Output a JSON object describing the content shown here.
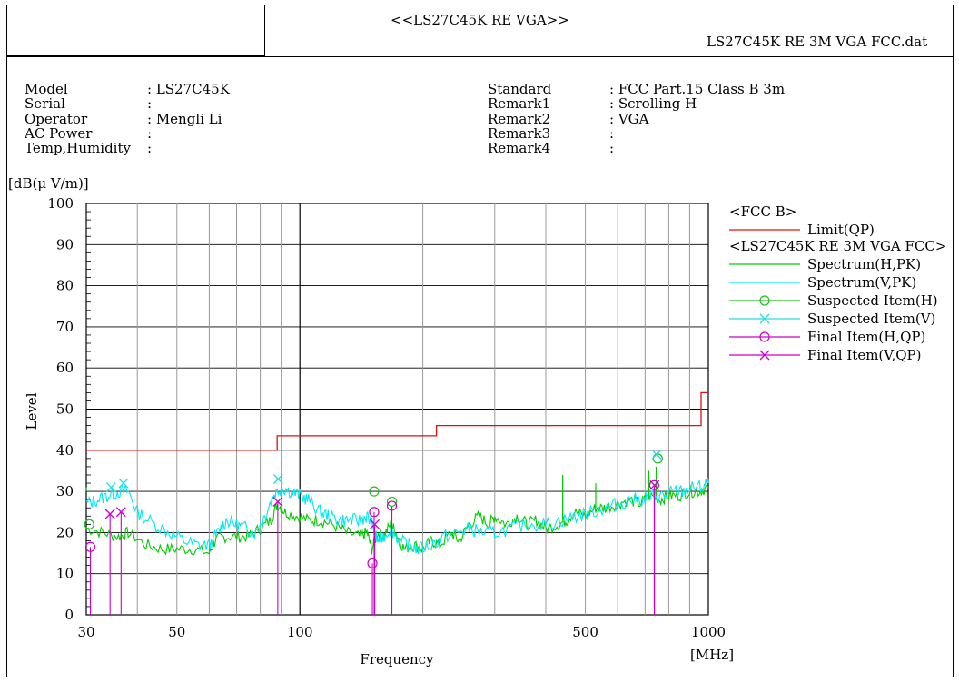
{
  "header": {
    "title": "<<LS27C45K RE VGA>>",
    "filename": "LS27C45K RE 3M VGA FCC.dat"
  },
  "meta_left": [
    {
      "label": "Model",
      "value": ": LS27C45K"
    },
    {
      "label": "Serial",
      "value": ":"
    },
    {
      "label": "Operator",
      "value": ": Mengli Li"
    },
    {
      "label": "AC Power",
      "value": ":"
    },
    {
      "label": "Temp,Humidity",
      "value": ":"
    }
  ],
  "meta_right": [
    {
      "label": "Standard",
      "value": ": FCC Part.15 Class B 3m"
    },
    {
      "label": "Remark1",
      "value": ": Scrolling H"
    },
    {
      "label": "Remark2",
      "value": ": VGA"
    },
    {
      "label": "Remark3",
      "value": ":"
    },
    {
      "label": "Remark4",
      "value": ":"
    }
  ],
  "chart_data": {
    "type": "line",
    "xlabel": "Frequency",
    "xunit": "[MHz]",
    "ylabel": "Level",
    "yunit": "[dB(μ V/m)]",
    "x_scale": "log",
    "xlim": [
      30,
      1000
    ],
    "ylim": [
      0,
      100
    ],
    "x_ticks": [
      30,
      50,
      100,
      500,
      1000
    ],
    "y_ticks": [
      0,
      10,
      20,
      30,
      40,
      50,
      60,
      70,
      80,
      90,
      100
    ],
    "grid": true,
    "legend_position": "right",
    "colors": {
      "limit": "#e01010",
      "spectrum_h": "#00cc00",
      "spectrum_v": "#00e8f0",
      "suspect_h": "#22bb22",
      "suspect_v": "#22dddd",
      "final": "#cc00cc"
    },
    "legend": {
      "group1": "<FCC B>",
      "limit": "Limit(QP)",
      "group2": "<LS27C45K RE 3M VGA FCC>",
      "spec_h": "Spectrum(H,PK)",
      "spec_v": "Spectrum(V,PK)",
      "sus_h": "Suspected Item(H)",
      "sus_v": "Suspected Item(V)",
      "fin_h": "Final Item(H,QP)",
      "fin_v": "Final Item(V,QP)"
    },
    "limit_line": [
      [
        30,
        40
      ],
      [
        88,
        40
      ],
      [
        88,
        43.5
      ],
      [
        216,
        43.5
      ],
      [
        216,
        46
      ],
      [
        960,
        46
      ],
      [
        960,
        54
      ],
      [
        1000,
        54
      ]
    ],
    "spectrum_h": [
      [
        30,
        21
      ],
      [
        33,
        20
      ],
      [
        36,
        19
      ],
      [
        38,
        20
      ],
      [
        42,
        17
      ],
      [
        46,
        16
      ],
      [
        50,
        16
      ],
      [
        55,
        16
      ],
      [
        60,
        15
      ],
      [
        62,
        18
      ],
      [
        65,
        19
      ],
      [
        70,
        19
      ],
      [
        75,
        19
      ],
      [
        80,
        21
      ],
      [
        85,
        23
      ],
      [
        88,
        27
      ],
      [
        92,
        25
      ],
      [
        98,
        24
      ],
      [
        105,
        23
      ],
      [
        112,
        23
      ],
      [
        120,
        22
      ],
      [
        130,
        20
      ],
      [
        140,
        19
      ],
      [
        146,
        20
      ],
      [
        150,
        16
      ],
      [
        155,
        20
      ],
      [
        160,
        19
      ],
      [
        167,
        22
      ],
      [
        172,
        20
      ],
      [
        180,
        16
      ],
      [
        190,
        17
      ],
      [
        200,
        16
      ],
      [
        210,
        18
      ],
      [
        220,
        17
      ],
      [
        235,
        20
      ],
      [
        245,
        18
      ],
      [
        260,
        22
      ],
      [
        275,
        24
      ],
      [
        290,
        22
      ],
      [
        300,
        24
      ],
      [
        320,
        22
      ],
      [
        340,
        24
      ],
      [
        360,
        22
      ],
      [
        380,
        23
      ],
      [
        400,
        21
      ],
      [
        430,
        22
      ],
      [
        450,
        23
      ],
      [
        470,
        25
      ],
      [
        500,
        24
      ],
      [
        530,
        26
      ],
      [
        560,
        26
      ],
      [
        600,
        27
      ],
      [
        640,
        28
      ],
      [
        680,
        27
      ],
      [
        720,
        29
      ],
      [
        760,
        28
      ],
      [
        800,
        29
      ],
      [
        850,
        29
      ],
      [
        900,
        30
      ],
      [
        950,
        30
      ],
      [
        1000,
        31
      ]
    ],
    "spectrum_v": [
      [
        30,
        27
      ],
      [
        32,
        28
      ],
      [
        34,
        29
      ],
      [
        36,
        30
      ],
      [
        38,
        30
      ],
      [
        40,
        25
      ],
      [
        44,
        22
      ],
      [
        48,
        20
      ],
      [
        52,
        18
      ],
      [
        56,
        17
      ],
      [
        60,
        17
      ],
      [
        63,
        20
      ],
      [
        66,
        23
      ],
      [
        70,
        22
      ],
      [
        74,
        21
      ],
      [
        78,
        20
      ],
      [
        82,
        24
      ],
      [
        86,
        29
      ],
      [
        90,
        31
      ],
      [
        95,
        30
      ],
      [
        100,
        29
      ],
      [
        105,
        28
      ],
      [
        112,
        25
      ],
      [
        118,
        24
      ],
      [
        125,
        23
      ],
      [
        132,
        23
      ],
      [
        140,
        23
      ],
      [
        146,
        24
      ],
      [
        150,
        22
      ],
      [
        155,
        18
      ],
      [
        160,
        19
      ],
      [
        167,
        21
      ],
      [
        175,
        18
      ],
      [
        185,
        17
      ],
      [
        195,
        16
      ],
      [
        210,
        17
      ],
      [
        225,
        19
      ],
      [
        245,
        20
      ],
      [
        260,
        21
      ],
      [
        280,
        20
      ],
      [
        300,
        20
      ],
      [
        330,
        21
      ],
      [
        360,
        22
      ],
      [
        400,
        22
      ],
      [
        440,
        23
      ],
      [
        480,
        24
      ],
      [
        520,
        25
      ],
      [
        560,
        26
      ],
      [
        600,
        27
      ],
      [
        650,
        28
      ],
      [
        700,
        28
      ],
      [
        740,
        29
      ],
      [
        780,
        29
      ],
      [
        820,
        30
      ],
      [
        870,
        30
      ],
      [
        920,
        31
      ],
      [
        970,
        31
      ],
      [
        1000,
        32
      ]
    ],
    "spurs": [
      [
        30,
        30,
        31
      ],
      [
        440,
        23,
        34
      ],
      [
        530,
        26,
        32
      ],
      [
        715,
        28,
        35
      ],
      [
        745,
        29,
        36
      ]
    ],
    "suspected_h": [
      [
        30.5,
        22
      ],
      [
        152,
        30
      ],
      [
        168,
        27.5
      ],
      [
        752,
        38
      ]
    ],
    "suspected_v": [
      [
        34.5,
        31
      ],
      [
        37,
        32
      ],
      [
        88.5,
        33
      ],
      [
        747,
        39
      ]
    ],
    "final_h": [
      [
        30.7,
        16.5
      ],
      [
        150.5,
        12.5
      ],
      [
        152,
        25
      ],
      [
        168,
        26.5
      ],
      [
        737,
        31.5
      ]
    ],
    "final_v": [
      [
        34.3,
        24.5
      ],
      [
        36.5,
        25
      ],
      [
        88.3,
        27.5
      ],
      [
        152.5,
        22
      ],
      [
        738,
        31.5
      ]
    ]
  }
}
